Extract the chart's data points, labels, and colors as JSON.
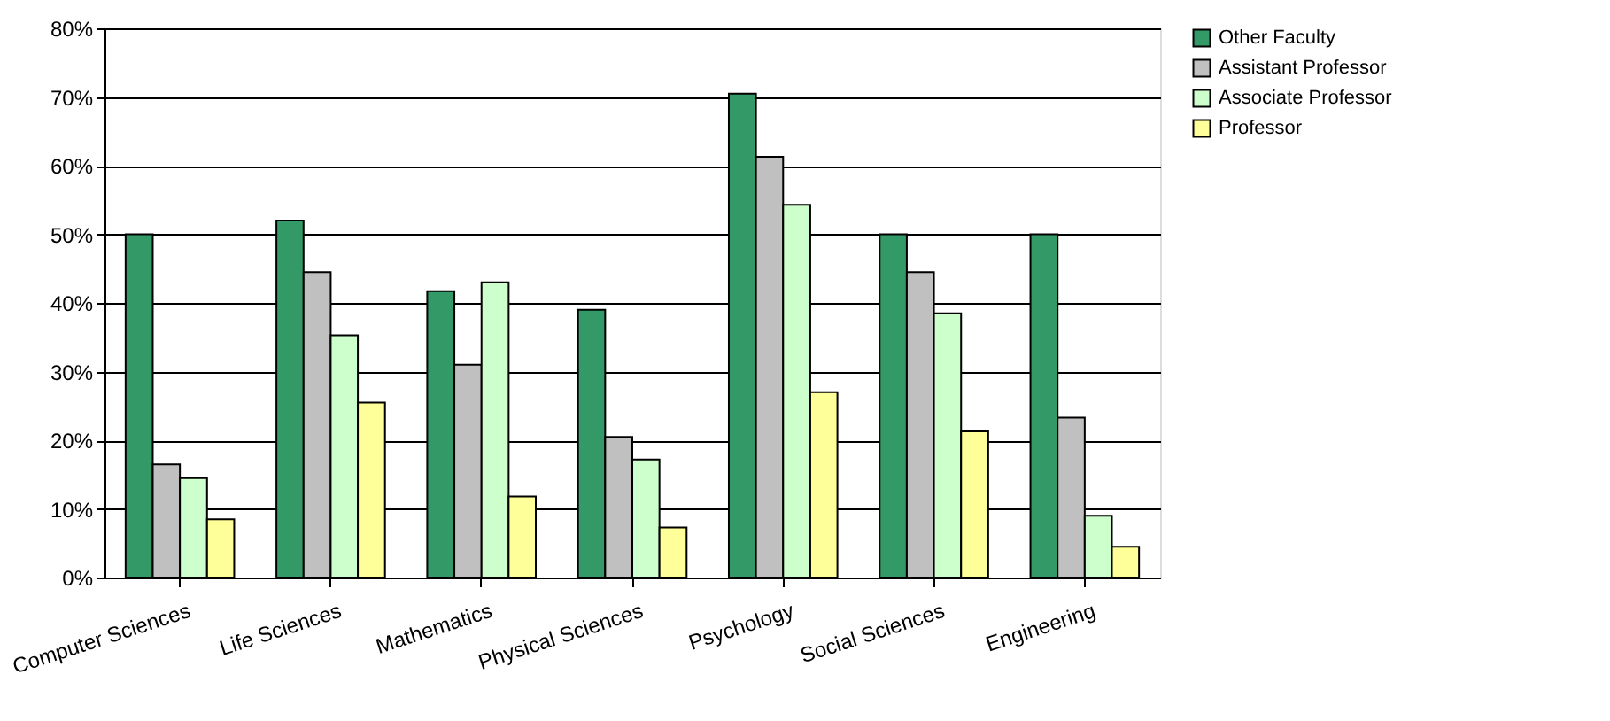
{
  "chart_data": {
    "type": "bar",
    "categories": [
      "Computer Sciences",
      "Life Sciences",
      "Mathematics",
      "Physical Sciences",
      "Psychology",
      "Social Sciences",
      "Engineering"
    ],
    "series": [
      {
        "name": "Other Faculty",
        "color": "#339966",
        "values": [
          50,
          52,
          41.7,
          39,
          70.5,
          50,
          50
        ]
      },
      {
        "name": "Assistant Professor",
        "color": "#c0c0c0",
        "values": [
          16.5,
          44.5,
          31,
          20.5,
          61.3,
          44.5,
          23.3
        ]
      },
      {
        "name": "Associate Professor",
        "color": "#ccffcc",
        "values": [
          14.5,
          35.3,
          43,
          17.2,
          54.3,
          38.5,
          9
        ]
      },
      {
        "name": "Professor",
        "color": "#ffff99",
        "values": [
          8.5,
          25.5,
          11.8,
          7.3,
          27,
          21.3,
          4.5
        ]
      }
    ],
    "ylim": [
      0,
      80
    ],
    "yticks": [
      {
        "value": 0,
        "label": "0%"
      },
      {
        "value": 10,
        "label": "10%"
      },
      {
        "value": 20,
        "label": "20%"
      },
      {
        "value": 30,
        "label": "30%"
      },
      {
        "value": 40,
        "label": "40%"
      },
      {
        "value": 50,
        "label": "50%"
      },
      {
        "value": 60,
        "label": "60%"
      },
      {
        "value": 70,
        "label": "70%"
      },
      {
        "value": 80,
        "label": "80%"
      }
    ],
    "grid": "y",
    "legend": "right"
  }
}
